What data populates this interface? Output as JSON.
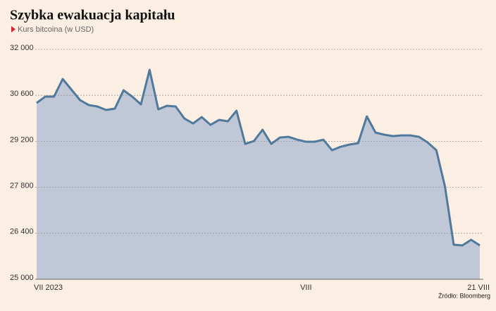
{
  "chart_data": {
    "type": "area",
    "title": "Szybka ewakuacja kapitału",
    "subtitle": "Kurs bitcoina (w USD)",
    "source": "Źródło: Bloomberg",
    "categories": [
      "VII 2023",
      null,
      null,
      null,
      null,
      null,
      null,
      null,
      null,
      null,
      null,
      null,
      null,
      null,
      null,
      null,
      null,
      null,
      null,
      null,
      null,
      null,
      null,
      null,
      null,
      null,
      null,
      null,
      null,
      null,
      null,
      "VIII",
      null,
      null,
      null,
      null,
      null,
      null,
      null,
      null,
      null,
      null,
      null,
      null,
      null,
      null,
      null,
      null,
      null,
      null,
      null,
      "21 VIII"
    ],
    "series": [
      {
        "name": "Kurs bitcoina",
        "color": "#4f7a9c",
        "fill": "#c0c7d6",
        "values": [
          30368,
          30561,
          30561,
          31098,
          30776,
          30454,
          30304,
          30261,
          30153,
          30196,
          30755,
          30561,
          30325,
          31377,
          30175,
          30282,
          30261,
          29896,
          29745,
          29938,
          29702,
          29852,
          29809,
          30132,
          29122,
          29208,
          29552,
          29122,
          29316,
          29337,
          29251,
          29187,
          29187,
          29251,
          28929,
          29036,
          29101,
          29144,
          29960,
          29466,
          29402,
          29359,
          29380,
          29380,
          29337,
          29165,
          28929,
          27813,
          26052,
          26031,
          26202,
          26031
        ]
      }
    ],
    "ylim": [
      25000,
      32000
    ],
    "yticks": [
      {
        "value": 25000,
        "label": "25 000"
      },
      {
        "value": 26400,
        "label": "26 400"
      },
      {
        "value": 27800,
        "label": "27 800"
      },
      {
        "value": 29200,
        "label": "29 200"
      },
      {
        "value": 30600,
        "label": "30 600"
      },
      {
        "value": 32000,
        "label": "32 000"
      }
    ],
    "grid": true
  }
}
